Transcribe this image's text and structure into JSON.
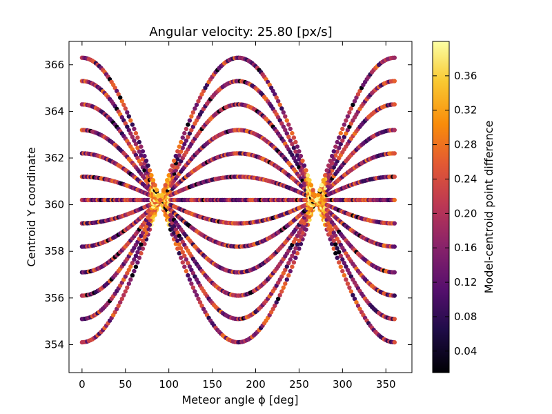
{
  "chart_data": {
    "type": "scatter",
    "title": "Angular velocity: 25.80 [px/s]",
    "xlabel": "Meteor angle ϕ [deg]",
    "ylabel": "Centroid Y coordinate",
    "xlim": [
      -15,
      380
    ],
    "ylim": [
      352.8,
      367.0
    ],
    "x_ticks": [
      0,
      50,
      100,
      150,
      200,
      250,
      300,
      350
    ],
    "y_ticks": [
      354,
      356,
      358,
      360,
      362,
      364,
      366
    ],
    "grid": false,
    "colormap": "inferno",
    "colorbar": {
      "label": "Model-centroid  point difference",
      "range": [
        0.015,
        0.4
      ],
      "ticks": [
        0.04,
        0.08,
        0.12,
        0.16,
        0.2,
        0.24,
        0.28,
        0.32,
        0.36
      ]
    },
    "series_model": {
      "description": "y = 360.2 + (c - 360.2) * |cos(phi)| for offsets c",
      "center": 360.2,
      "offsets": [
        354.1,
        355.1,
        356.1,
        357.1,
        358.2,
        359.2,
        360.2,
        361.2,
        362.2,
        363.2,
        364.3,
        365.3,
        366.3
      ],
      "x_range": [
        0,
        360
      ],
      "x_step": 2
    }
  }
}
